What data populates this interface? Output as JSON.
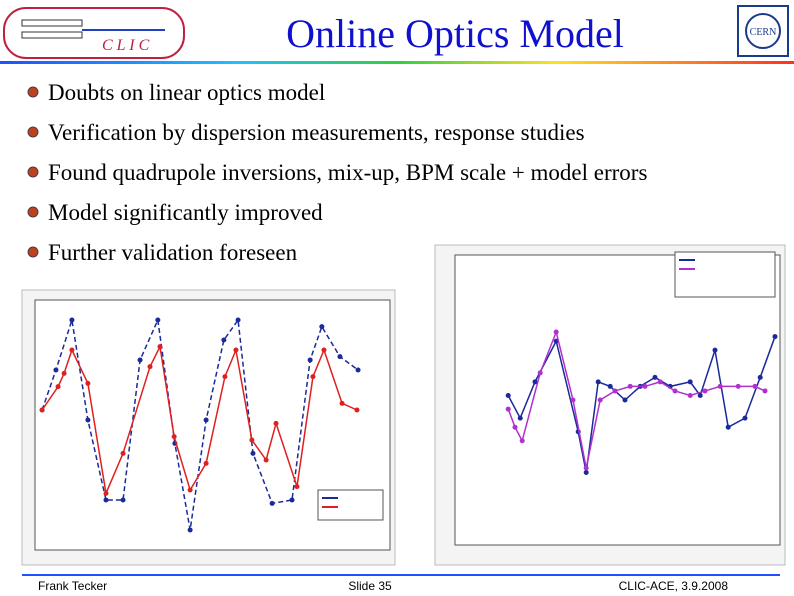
{
  "title": "Online Optics Model",
  "bullets": [
    "Doubts on linear optics model",
    "Verification by dispersion measurements, response studies",
    "Found quadrupole inversions, mix-up, BPM scale + model errors",
    "Model significantly improved",
    "Further validation foreseen"
  ],
  "footer": {
    "author": "Frank Tecker",
    "slide": "Slide 35",
    "event": "CLIC-ACE, 3.9.2008"
  },
  "chart_data": [
    {
      "type": "line",
      "xlim": [
        0,
        100
      ],
      "ylim": [
        -4.2,
        3.3
      ],
      "series": [
        {
          "color": "#1a2a9a",
          "dash": true,
          "x": [
            2.0,
            5.9,
            10.4,
            14.9,
            20.0,
            24.8,
            29.6,
            34.6,
            39.4,
            43.7,
            48.2,
            53.2,
            57.2,
            61.4,
            66.8,
            72.4,
            77.5,
            80.8,
            85.9,
            91.0
          ],
          "values": [
            0,
            1.2,
            2.7,
            -0.3,
            -2.7,
            -2.7,
            1.5,
            2.7,
            -1.0,
            -3.6,
            -0.3,
            2.1,
            2.7,
            -1.3,
            -2.8,
            -2.7,
            1.5,
            2.5,
            1.6,
            1.2
          ]
        },
        {
          "color": "#e02020",
          "dash": false,
          "x": [
            2.0,
            6.5,
            8.2,
            10.4,
            14.9,
            20.0,
            24.8,
            32.4,
            35.2,
            39.2,
            43.7,
            48.2,
            53.5,
            56.6,
            61.1,
            65.1,
            67.9,
            73.8,
            78.3,
            81.4,
            86.5,
            90.7
          ],
          "values": [
            0,
            0.7,
            1.1,
            1.8,
            0.8,
            -2.5,
            -1.3,
            1.3,
            1.9,
            -0.8,
            -2.4,
            -1.6,
            1.0,
            1.8,
            -0.9,
            -1.5,
            -0.4,
            -2.3,
            1.0,
            1.8,
            0.2,
            0
          ]
        }
      ]
    },
    {
      "type": "line",
      "xlim": [
        0,
        81.25
      ],
      "ylim": [
        -3.4,
        3.0
      ],
      "series": [
        {
          "color": "#1a2a9a",
          "dash": false,
          "x": [
            13.3,
            16.3,
            20.0,
            25.3,
            30.8,
            32.8,
            35.8,
            38.8,
            42.5,
            46.3,
            50.0,
            53.8,
            58.8,
            61.3,
            65.0,
            68.3,
            72.5,
            76.3,
            80.0
          ],
          "values": [
            -0.1,
            -0.6,
            0.2,
            1.1,
            -0.9,
            -1.8,
            0.2,
            0.1,
            -0.2,
            0.1,
            0.3,
            0.1,
            0.2,
            -0.1,
            0.9,
            -0.8,
            -0.6,
            0.3,
            1.2
          ]
        },
        {
          "color": "#b030d0",
          "dash": false,
          "x": [
            13.3,
            15.0,
            16.8,
            21.3,
            25.3,
            29.5,
            32.8,
            36.3,
            40.0,
            43.8,
            47.5,
            51.3,
            55.0,
            58.8,
            62.5,
            66.3,
            70.8,
            75.0,
            77.5
          ],
          "values": [
            -0.4,
            -0.8,
            -1.1,
            0.4,
            1.3,
            -0.2,
            -1.7,
            -0.2,
            0,
            0.1,
            0.1,
            0.2,
            0,
            -0.1,
            0,
            0.1,
            0.1,
            0.1,
            0
          ]
        }
      ]
    }
  ]
}
